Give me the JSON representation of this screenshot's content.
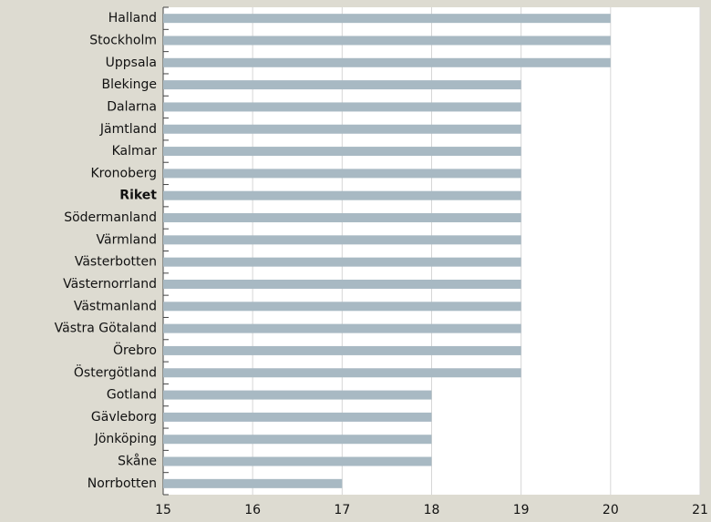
{
  "chart_data": {
    "type": "bar",
    "orientation": "horizontal",
    "categories": [
      "Halland",
      "Stockholm",
      "Uppsala",
      "Blekinge",
      "Dalarna",
      "Jämtland",
      "Kalmar",
      "Kronoberg",
      "Riket",
      "Södermanland",
      "Värmland",
      "Västerbotten",
      "Västernorrland",
      "Västmanland",
      "Västra Götaland",
      "Örebro",
      "Östergötland",
      "Gotland",
      "Gävleborg",
      "Jönköping",
      "Skåne",
      "Norrbotten"
    ],
    "values": [
      20,
      20,
      20,
      19,
      19,
      19,
      19,
      19,
      19,
      19,
      19,
      19,
      19,
      19,
      19,
      19,
      19,
      18,
      18,
      18,
      18,
      17
    ],
    "bold_categories": [
      8
    ],
    "color": "#a8b9c3",
    "xlim": [
      15,
      21
    ],
    "xticks": [
      15,
      16,
      17,
      18,
      19,
      20,
      21
    ],
    "grid": true
  }
}
